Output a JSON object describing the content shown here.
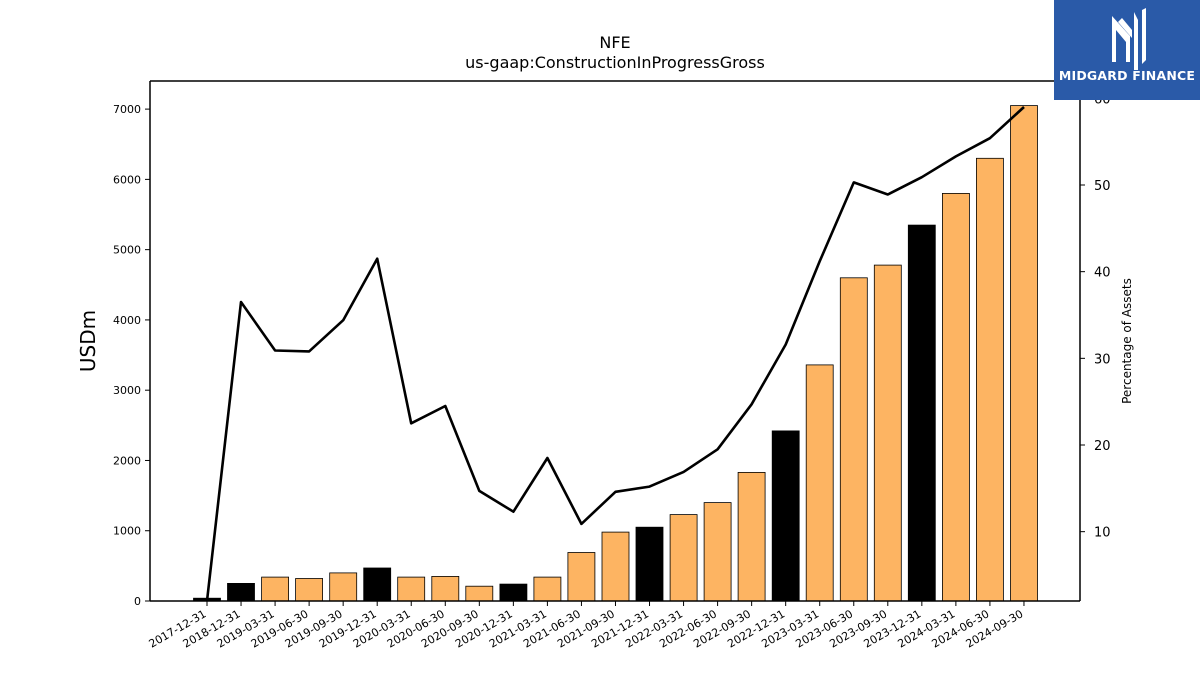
{
  "brand": {
    "name": "MIDGARD FINANCE",
    "bg_color": "#2a5aa8"
  },
  "chart_data": {
    "type": "bar",
    "title": "NFE",
    "subtitle": "us-gaap:ConstructionInProgressGross",
    "ylabel": "USDm",
    "y2label": "Percentage of Assets",
    "ylim": [
      0,
      7400
    ],
    "y2lim": [
      2,
      62
    ],
    "yticks": [
      0,
      1000,
      2000,
      3000,
      4000,
      5000,
      6000,
      7000
    ],
    "y2ticks": [
      10,
      20,
      30,
      40,
      50,
      60
    ],
    "categories": [
      "2017-12-31",
      "2018-12-31",
      "2019-03-31",
      "2019-06-30",
      "2019-09-30",
      "2019-12-31",
      "2020-03-31",
      "2020-06-30",
      "2020-09-30",
      "2020-12-31",
      "2021-03-31",
      "2021-06-30",
      "2021-09-30",
      "2021-12-31",
      "2022-03-31",
      "2022-06-30",
      "2022-09-30",
      "2022-12-31",
      "2023-03-31",
      "2023-06-30",
      "2023-09-30",
      "2023-12-31",
      "2024-03-31",
      "2024-06-30",
      "2024-09-30"
    ],
    "series": [
      {
        "kind": "bar",
        "values": [
          40,
          250,
          340,
          320,
          400,
          470,
          340,
          350,
          210,
          240,
          340,
          690,
          980,
          1050,
          1230,
          1400,
          1830,
          2420,
          3360,
          4600,
          4780,
          5350,
          5800,
          6300,
          7050
        ],
        "colors": [
          "#000000",
          "#000000",
          "#fdb462",
          "#fdb462",
          "#fdb462",
          "#000000",
          "#fdb462",
          "#fdb462",
          "#fdb462",
          "#000000",
          "#fdb462",
          "#fdb462",
          "#fdb462",
          "#000000",
          "#fdb462",
          "#fdb462",
          "#fdb462",
          "#000000",
          "#fdb462",
          "#fdb462",
          "#fdb462",
          "#000000",
          "#fdb462",
          "#fdb462",
          "#fdb462"
        ]
      },
      {
        "kind": "line",
        "axis": "right",
        "color": "#000000",
        "values": [
          2.0,
          36.5,
          30.9,
          30.8,
          34.4,
          41.5,
          22.5,
          24.5,
          14.7,
          12.3,
          18.5,
          10.9,
          14.6,
          15.2,
          16.9,
          19.5,
          24.7,
          31.6,
          41.2,
          50.3,
          48.9,
          50.9,
          53.3,
          55.4,
          59.0
        ]
      }
    ],
    "bar_edge_color": "#000000",
    "grid": false,
    "legend": "none"
  }
}
